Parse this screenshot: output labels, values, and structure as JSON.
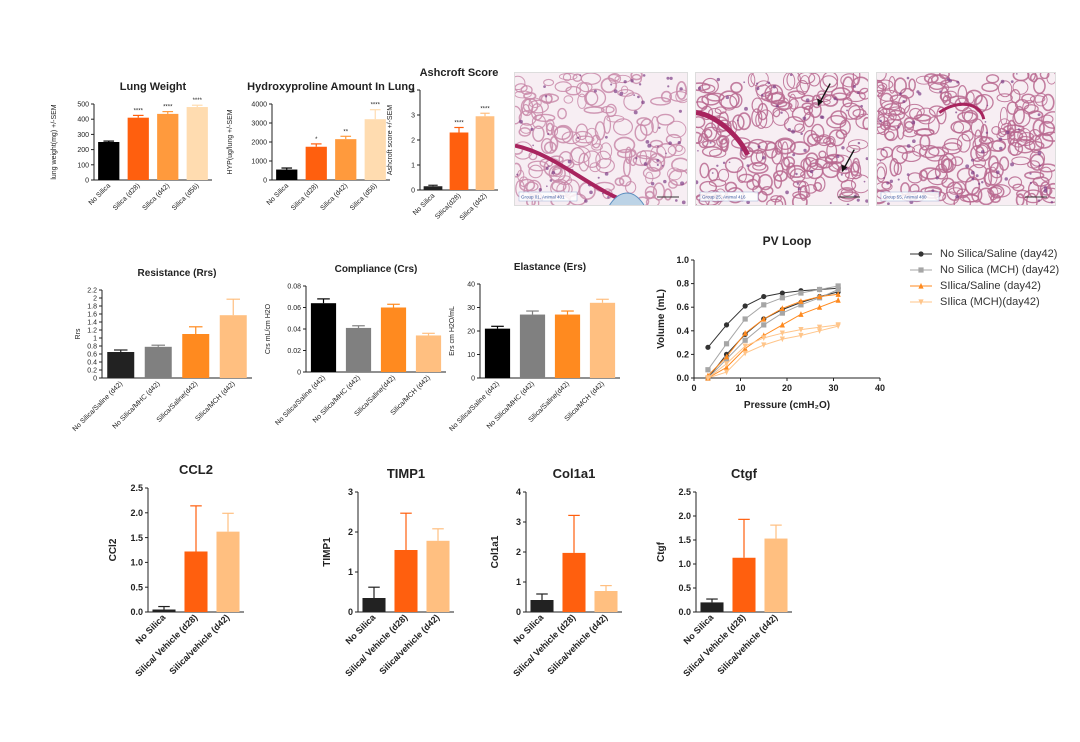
{
  "colors": {
    "black": "#000000",
    "dark": "#222222",
    "gray": "#808080",
    "orange": "#ff5f0e",
    "orangeMid": "#ff9a3d",
    "light": "#ffbf80",
    "pale": "#ffdcb0",
    "pvBlack": "#333333",
    "pvGray": "#a6a6a6",
    "pvOrange": "#ff8a1f",
    "pvLight": "#ffc58a"
  },
  "chart_data": [
    {
      "id": "lung-weight",
      "type": "bar",
      "title": "Lung Weight",
      "ylabel": "lung weight(mg) +/-SEM",
      "categories": [
        "No Silica",
        "Silica (d28)",
        "Silica (d42)",
        "Silica (d56)"
      ],
      "values": [
        250,
        410,
        435,
        480
      ],
      "errors": [
        6,
        15,
        15,
        12
      ],
      "sig": [
        "",
        "****",
        "****",
        "****"
      ],
      "ylim": [
        0,
        500
      ],
      "yticks": [
        "0",
        "100",
        "200",
        "300",
        "400",
        "500"
      ],
      "colors": [
        "#000000",
        "#ff5f0e",
        "#ff9a3d",
        "#ffdcb0"
      ]
    },
    {
      "id": "hydroxyproline",
      "type": "bar",
      "title": "Hydroxyproline Amount In Lung",
      "ylabel": "HYP(ug/lung +/-SEM",
      "categories": [
        "No Silica",
        "Silica (d28)",
        "Silica (d42)",
        "Silica (d56)"
      ],
      "values": [
        550,
        1750,
        2150,
        3200
      ],
      "errors": [
        80,
        150,
        150,
        500
      ],
      "sig": [
        "",
        "*",
        "**",
        "****"
      ],
      "ylim": [
        0,
        4000
      ],
      "yticks": [
        "0",
        "1000",
        "2000",
        "3000",
        "4000"
      ],
      "colors": [
        "#000000",
        "#ff5f0e",
        "#ff9a3d",
        "#ffdcb0"
      ]
    },
    {
      "id": "ashcroft",
      "type": "bar",
      "title": "Ashcroft Score",
      "ylabel": "Ashcroft score +/-SEM",
      "categories": [
        "No Silica",
        "Silica(d28)",
        "Silica (d42)"
      ],
      "values": [
        0.15,
        2.3,
        2.95
      ],
      "errors": [
        0.04,
        0.2,
        0.12
      ],
      "sig": [
        "",
        "****",
        "****"
      ],
      "ylim": [
        0,
        4
      ],
      "yticks": [
        "0",
        "1",
        "2",
        "3",
        "4"
      ],
      "colors": [
        "#222222",
        "#ff5f0e",
        "#ffbf80"
      ]
    },
    {
      "id": "resistance",
      "type": "bar",
      "title": "Resistance (Rrs)",
      "ylabel": "Rrs",
      "categories": [
        "No Silica/Saline (d42)",
        "No Silica/MHC (d42)",
        "Silica/Saline(d42)",
        "Silica/MCH (d42)"
      ],
      "values": [
        0.65,
        0.78,
        1.1,
        1.57
      ],
      "errors": [
        0.05,
        0.04,
        0.18,
        0.4
      ],
      "sig": [
        "",
        "",
        "",
        ""
      ],
      "ylim": [
        0,
        2.2
      ],
      "yticks": [
        "0",
        "0.2",
        "0.4",
        "0.6",
        "0.8",
        "1",
        "1.2",
        "1.4",
        "1.6",
        "1.8",
        "2",
        "2.2"
      ],
      "colors": [
        "#222222",
        "#808080",
        "#ff8a1f",
        "#ffbf80"
      ]
    },
    {
      "id": "compliance",
      "type": "bar",
      "title": "Compliance (Crs)",
      "ylabel": "Crs mL/cm H2O",
      "categories": [
        "No Silica/Saline (d42)",
        "No Silica/MHC (d42)",
        "Silica/Saline(d42)",
        "Silica/MCH (d42)"
      ],
      "values": [
        0.064,
        0.041,
        0.06,
        0.034
      ],
      "errors": [
        0.004,
        0.002,
        0.003,
        0.002
      ],
      "sig": [
        "",
        "",
        "",
        ""
      ],
      "ylim": [
        0,
        0.08
      ],
      "yticks": [
        "0",
        "0.02",
        "0.04",
        "0.06",
        "0.08"
      ],
      "colors": [
        "#000000",
        "#808080",
        "#ff8a1f",
        "#ffbf80"
      ]
    },
    {
      "id": "elastance",
      "type": "bar",
      "title": "Elastance (Ers)",
      "ylabel": "Ers cm H2O/mL",
      "categories": [
        "No Silica/Saline (d42)",
        "No Silica/MHC (d42)",
        "Silica/Saline(d42)",
        "Silica/MCH (d42)"
      ],
      "values": [
        21,
        27,
        27,
        32
      ],
      "errors": [
        1,
        1.5,
        1.5,
        1.5
      ],
      "sig": [
        "",
        "",
        "",
        ""
      ],
      "ylim": [
        0,
        40
      ],
      "yticks": [
        "0",
        "10",
        "20",
        "30",
        "40"
      ],
      "colors": [
        "#000000",
        "#808080",
        "#ff8a1f",
        "#ffbf80"
      ]
    },
    {
      "id": "pv-loop",
      "type": "line",
      "title": "PV Loop",
      "xlabel": "Pressure (cmH₂O)",
      "ylabel": "Volume (mL)",
      "xlim": [
        0,
        40
      ],
      "ylim": [
        0,
        1.0
      ],
      "xticks": [
        "0",
        "10",
        "20",
        "30",
        "40"
      ],
      "yticks": [
        "0.0",
        "0.2",
        "0.4",
        "0.6",
        "0.8",
        "1.0"
      ],
      "legend": "right",
      "series": [
        {
          "name": "No Silica/Saline (day42)",
          "color": "#333333",
          "marker": "circle",
          "upper": [
            [
              3,
              0.26
            ],
            [
              7,
              0.45
            ],
            [
              11,
              0.61
            ],
            [
              15,
              0.69
            ],
            [
              19,
              0.72
            ],
            [
              23,
              0.74
            ],
            [
              27,
              0.75
            ],
            [
              31,
              0.76
            ]
          ],
          "lower": [
            [
              3,
              0.0
            ],
            [
              7,
              0.2
            ],
            [
              11,
              0.37
            ],
            [
              15,
              0.5
            ],
            [
              19,
              0.58
            ],
            [
              23,
              0.64
            ],
            [
              27,
              0.69
            ],
            [
              31,
              0.73
            ]
          ]
        },
        {
          "name": "No Silica (MCH) (day42)",
          "color": "#a6a6a6",
          "marker": "square",
          "upper": [
            [
              3,
              0.07
            ],
            [
              7,
              0.29
            ],
            [
              11,
              0.5
            ],
            [
              15,
              0.62
            ],
            [
              19,
              0.68
            ],
            [
              23,
              0.72
            ],
            [
              27,
              0.75
            ],
            [
              31,
              0.78
            ]
          ],
          "lower": [
            [
              3,
              0.0
            ],
            [
              7,
              0.16
            ],
            [
              11,
              0.32
            ],
            [
              15,
              0.45
            ],
            [
              19,
              0.55
            ],
            [
              23,
              0.62
            ],
            [
              27,
              0.68
            ],
            [
              31,
              0.75
            ]
          ]
        },
        {
          "name": "SIlica/Saline (day42)",
          "color": "#ff8a1f",
          "marker": "triangle",
          "upper": [
            [
              3,
              0.02
            ],
            [
              7,
              0.18
            ],
            [
              11,
              0.38
            ],
            [
              15,
              0.5
            ],
            [
              19,
              0.59
            ],
            [
              23,
              0.65
            ],
            [
              27,
              0.69
            ],
            [
              31,
              0.71
            ]
          ],
          "lower": [
            [
              3,
              0.0
            ],
            [
              7,
              0.09
            ],
            [
              11,
              0.25
            ],
            [
              15,
              0.36
            ],
            [
              19,
              0.45
            ],
            [
              23,
              0.54
            ],
            [
              27,
              0.6
            ],
            [
              31,
              0.66
            ]
          ]
        },
        {
          "name": "SIlica (MCH)(day42)",
          "color": "#ffc58a",
          "marker": "triangle-down",
          "upper": [
            [
              3,
              0.0
            ],
            [
              7,
              0.12
            ],
            [
              11,
              0.27
            ],
            [
              15,
              0.34
            ],
            [
              19,
              0.38
            ],
            [
              23,
              0.41
            ],
            [
              27,
              0.43
            ],
            [
              31,
              0.45
            ]
          ],
          "lower": [
            [
              3,
              0.0
            ],
            [
              7,
              0.05
            ],
            [
              11,
              0.21
            ],
            [
              15,
              0.28
            ],
            [
              19,
              0.33
            ],
            [
              23,
              0.36
            ],
            [
              27,
              0.4
            ],
            [
              31,
              0.44
            ]
          ]
        }
      ]
    },
    {
      "id": "ccl2",
      "type": "bar",
      "title": "CCL2",
      "ylabel": "CCl2",
      "categories": [
        "No Silica",
        "Silica/ Vehicle (d28)",
        "Silica/vehicle (d42)"
      ],
      "values": [
        0.05,
        1.22,
        1.62
      ],
      "errors": [
        0.06,
        0.92,
        0.37
      ],
      "sig": [
        "",
        "",
        ""
      ],
      "ylim": [
        0,
        2.5
      ],
      "yticks": [
        "0.0",
        "0.5",
        "1.0",
        "1.5",
        "2.0",
        "2.5"
      ],
      "colors": [
        "#222222",
        "#ff5f0e",
        "#ffbf80"
      ]
    },
    {
      "id": "timp1",
      "type": "bar",
      "title": "TIMP1",
      "ylabel": "TIMP1",
      "categories": [
        "No Silica",
        "Silica/ Vehicle (d28)",
        "Silica/vehicle (d42)"
      ],
      "values": [
        0.35,
        1.55,
        1.78
      ],
      "errors": [
        0.27,
        0.92,
        0.3
      ],
      "sig": [
        "",
        "",
        ""
      ],
      "ylim": [
        0,
        3
      ],
      "yticks": [
        "0",
        "1",
        "2",
        "3"
      ],
      "colors": [
        "#222222",
        "#ff5f0e",
        "#ffbf80"
      ]
    },
    {
      "id": "col1a1",
      "type": "bar",
      "title": "Col1a1",
      "ylabel": "Col1a1",
      "categories": [
        "No Silica",
        "Silica/ Vehicle (d28)",
        "Silica/vehicle (d42)"
      ],
      "values": [
        0.4,
        1.97,
        0.7
      ],
      "errors": [
        0.2,
        1.25,
        0.18
      ],
      "sig": [
        "",
        "",
        ""
      ],
      "ylim": [
        0,
        4
      ],
      "yticks": [
        "0",
        "1",
        "2",
        "3",
        "4"
      ],
      "colors": [
        "#222222",
        "#ff5f0e",
        "#ffbf80"
      ]
    },
    {
      "id": "ctgf",
      "type": "bar",
      "title": "Ctgf",
      "ylabel": "Ctgf",
      "categories": [
        "No Silica",
        "Silica/ Vehicle (d28)",
        "Silica/vehicle (d42)"
      ],
      "values": [
        0.2,
        1.13,
        1.53
      ],
      "errors": [
        0.07,
        0.8,
        0.28
      ],
      "sig": [
        "",
        "",
        ""
      ],
      "ylim": [
        0,
        2.5
      ],
      "yticks": [
        "0.0",
        "0.5",
        "1.0",
        "1.5",
        "2.0",
        "2.5"
      ],
      "colors": [
        "#222222",
        "#ff5f0e",
        "#ffbf80"
      ]
    }
  ],
  "histology": [
    {
      "label": "Group 01, Animal 401",
      "arrows": 0
    },
    {
      "label": "Group 25, Animal 416",
      "arrows": 2
    },
    {
      "label": "Group 55, Animal 480",
      "arrows": 0
    }
  ]
}
